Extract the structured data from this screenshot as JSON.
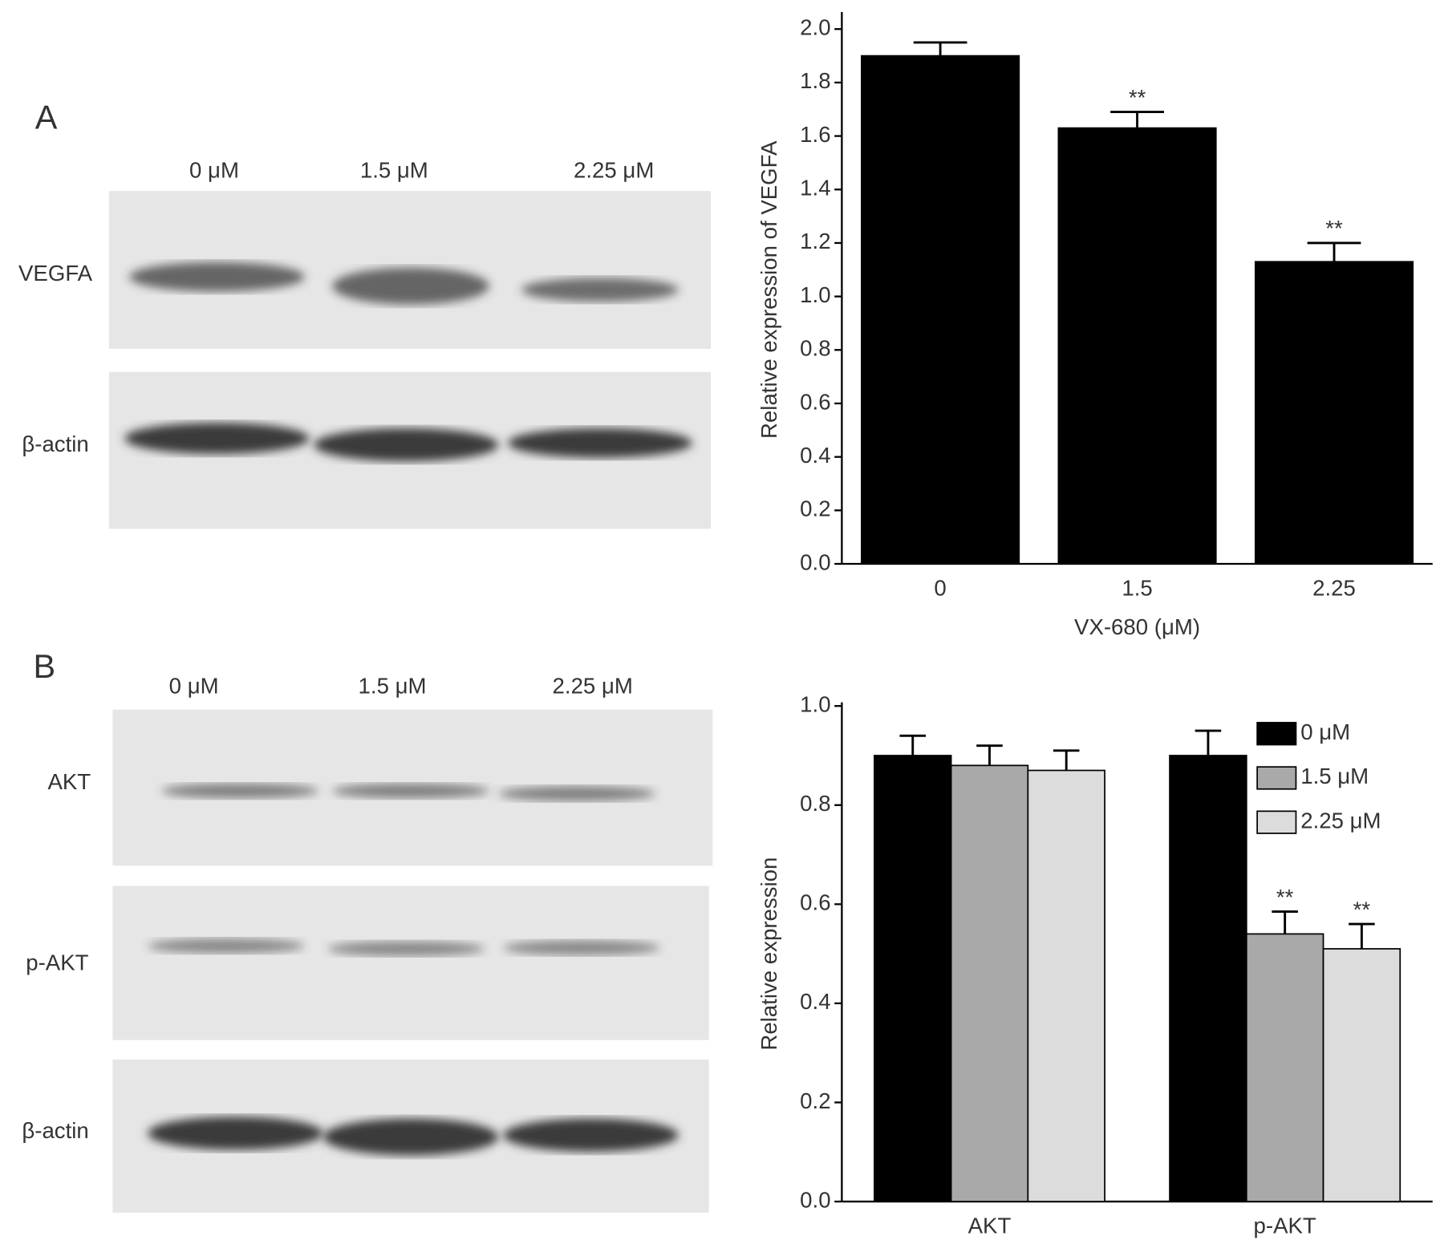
{
  "panel_labels": [
    "A",
    "B"
  ],
  "blots": [
    {
      "lanes": [
        "0 μM",
        "1.5 μM",
        "2.25 μM"
      ],
      "rows": [
        "VEGFA",
        "β-actin"
      ]
    },
    {
      "lanes": [
        "0 μM",
        "1.5 μM",
        "2.25 μM"
      ],
      "rows": [
        "AKT",
        "p-AKT",
        "β-actin"
      ]
    }
  ],
  "chart_data": [
    {
      "type": "bar",
      "y_label": "Relative expression of VEGFA",
      "x_label": "VX-680 (μM)",
      "categories": [
        "0",
        "1.5",
        "2.25"
      ],
      "values": [
        1.9,
        1.63,
        1.13
      ],
      "errors": [
        0.05,
        0.06,
        0.07
      ],
      "annotations": [
        null,
        "**",
        "**"
      ],
      "color": "#000000",
      "ylim": [
        0,
        2.05
      ],
      "yticks": [
        {
          "value": 0,
          "label": "0.0"
        },
        {
          "value": 0.2,
          "label": "0.2"
        },
        {
          "value": 0.4,
          "label": "0.4"
        },
        {
          "value": 0.6,
          "label": "0.6"
        },
        {
          "value": 0.8,
          "label": "0.8"
        },
        {
          "value": 1.0,
          "label": "1.0"
        },
        {
          "value": 1.2,
          "label": "1.2"
        },
        {
          "value": 1.4,
          "label": "1.4"
        },
        {
          "value": 1.6,
          "label": "1.6"
        },
        {
          "value": 1.8,
          "label": "1.8"
        },
        {
          "value": 2.0,
          "label": "2.0"
        }
      ]
    },
    {
      "type": "grouped_bar",
      "y_label": "Relative expression",
      "categories": [
        "AKT",
        "p-AKT"
      ],
      "series": [
        {
          "name": "0 μM",
          "color": "#000000",
          "values": [
            0.9,
            0.9
          ],
          "errors": [
            0.04,
            0.05
          ]
        },
        {
          "name": "1.5 μM",
          "color": "#a9a9a9",
          "values": [
            0.88,
            0.54
          ],
          "errors": [
            0.04,
            0.045
          ],
          "annotations": [
            null,
            "**"
          ]
        },
        {
          "name": "2.25 μM",
          "color": "#dcdcdc",
          "values": [
            0.87,
            0.51
          ],
          "errors": [
            0.04,
            0.05
          ],
          "annotations": [
            null,
            "**"
          ]
        }
      ],
      "ylim": [
        0,
        1.0
      ],
      "yticks": [
        {
          "value": 0,
          "label": "0.0"
        },
        {
          "value": 0.2,
          "label": "0.2"
        },
        {
          "value": 0.4,
          "label": "0.4"
        },
        {
          "value": 0.6,
          "label": "0.6"
        },
        {
          "value": 0.8,
          "label": "0.8"
        },
        {
          "value": 1.0,
          "label": "1.0"
        }
      ],
      "legend": "upper right"
    }
  ]
}
